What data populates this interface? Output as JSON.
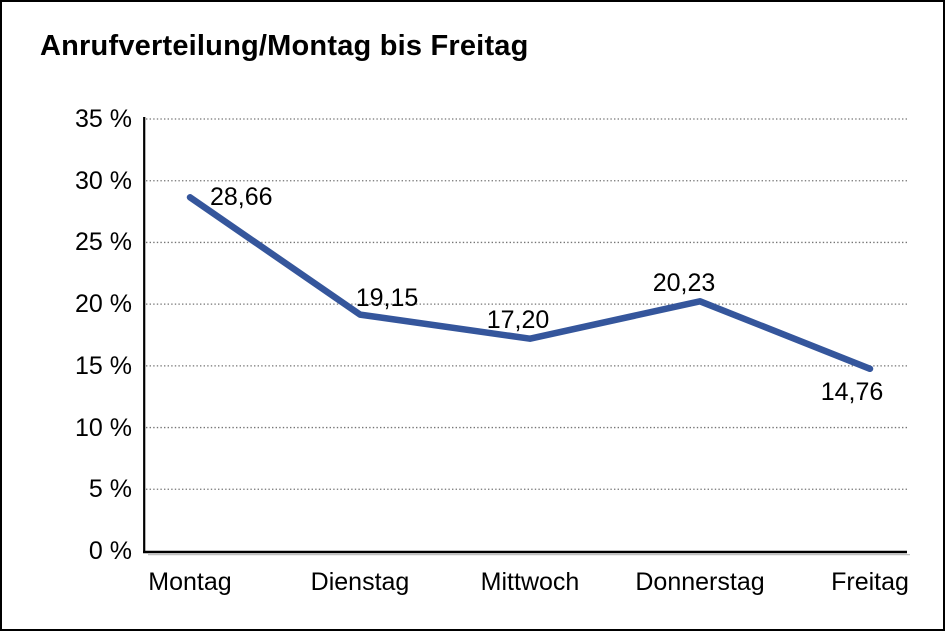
{
  "chart_data": {
    "type": "line",
    "title": "Anrufverteilung/Montag bis Freitag",
    "categories": [
      "Montag",
      "Dienstag",
      "Mittwoch",
      "Donnerstag",
      "Freitag"
    ],
    "values": [
      28.66,
      19.15,
      17.2,
      20.23,
      14.76
    ],
    "point_labels": [
      "28,66",
      "19,15",
      "17,20",
      "20,23",
      "14,76"
    ],
    "y_tick_labels": [
      "35 %",
      "30 %",
      "25 %",
      "20 %",
      "15 %",
      "10 %",
      "5 %",
      "0 %"
    ],
    "y_tick_values": [
      35,
      30,
      25,
      20,
      15,
      10,
      5,
      0
    ],
    "ylim": [
      0,
      35
    ],
    "y_tick_step": 5,
    "xlabel": "",
    "ylabel": "",
    "legend": "none",
    "grid": "horizontal-dotted",
    "colors": {
      "series_line": "#35569C",
      "axis": "#000000",
      "gridline": "#757575",
      "text": "#000000",
      "background": "#ffffff",
      "frame_border": "#000000"
    }
  }
}
